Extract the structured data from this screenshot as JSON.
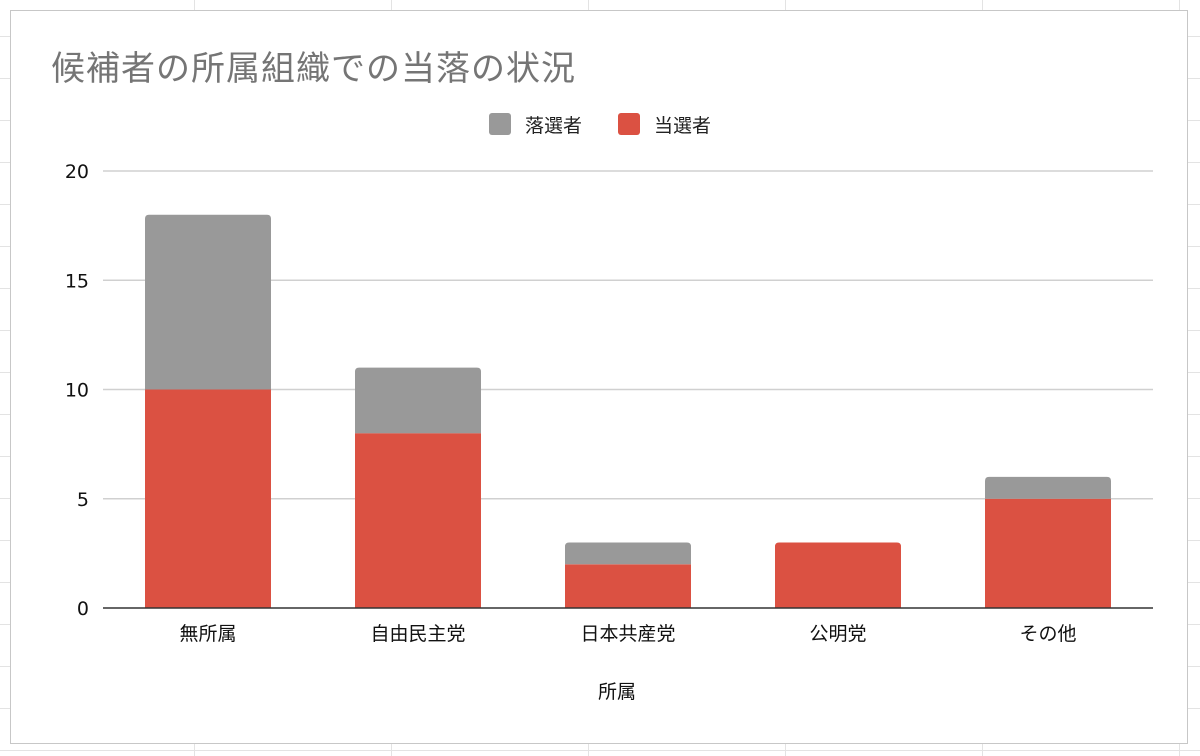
{
  "chart_data": {
    "type": "bar",
    "stacked": true,
    "title": "候補者の所属組織での当落の状況",
    "xlabel": "所属",
    "ylabel": "",
    "categories": [
      "無所属",
      "自由民主党",
      "日本共産党",
      "公明党",
      "その他"
    ],
    "series": [
      {
        "name": "当選者",
        "color": "#db5142",
        "values": [
          10,
          8,
          2,
          3,
          5
        ]
      },
      {
        "name": "落選者",
        "color": "#999999",
        "values": [
          8,
          3,
          1,
          0,
          1
        ]
      }
    ],
    "legend_order": [
      1,
      0
    ],
    "ylim": [
      0,
      20
    ],
    "yticks": [
      0,
      5,
      10,
      15,
      20
    ],
    "grid": true,
    "legend_position": "top-center"
  }
}
